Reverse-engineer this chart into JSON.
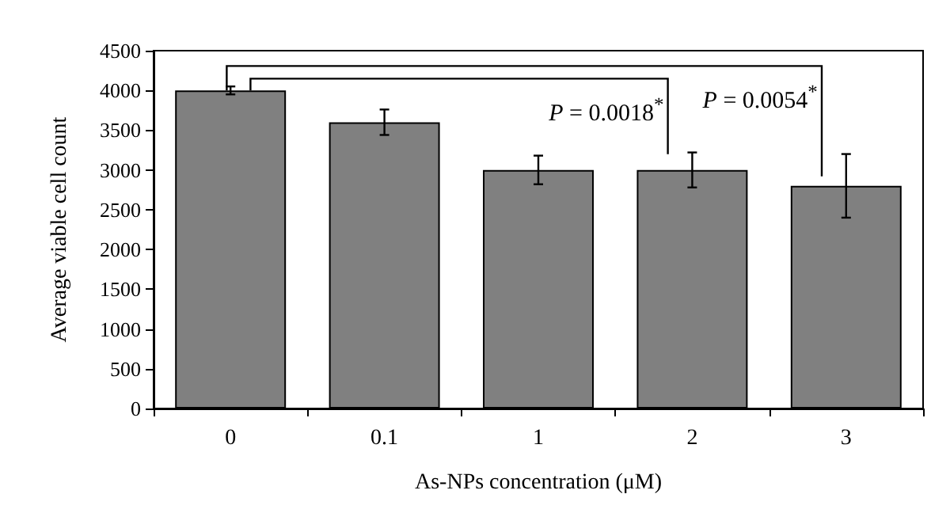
{
  "chart_data": {
    "type": "bar",
    "xlabel": "As-NPs concentration (μM)",
    "ylabel": "Average viable cell count",
    "categories": [
      "0",
      "0.1",
      "1",
      "2",
      "3"
    ],
    "values": [
      4000,
      3600,
      3000,
      3000,
      2800
    ],
    "errors": [
      50,
      160,
      180,
      220,
      400
    ],
    "color": "#808080",
    "ylim": [
      0,
      4500
    ],
    "yticks": [
      0,
      500,
      1000,
      1500,
      2000,
      2500,
      3000,
      3500,
      4000,
      4500
    ],
    "grid": false,
    "annotations": [
      "P = 0.0018$^{*}$",
      "P = 0.0054$^{*}$"
    ]
  }
}
